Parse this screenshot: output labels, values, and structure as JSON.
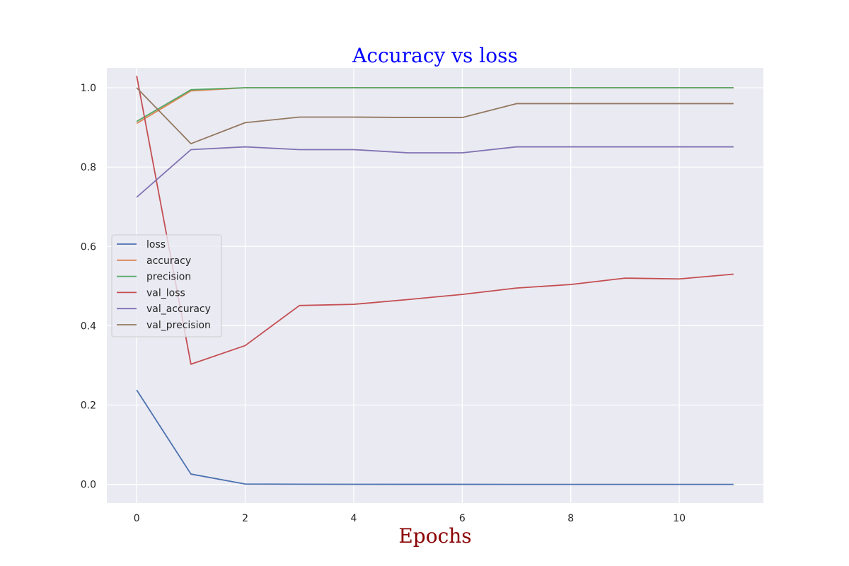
{
  "chart_data": {
    "type": "line",
    "title": "Accuracy vs loss",
    "title_color": "#0000ff",
    "xlabel": "Epochs",
    "xlabel_color": "#8b0000",
    "ylabel": "",
    "x": [
      0,
      1,
      2,
      3,
      4,
      5,
      6,
      7,
      8,
      9,
      10,
      11
    ],
    "xlim": [
      -0.55,
      11.55
    ],
    "ylim": [
      -0.047,
      1.05
    ],
    "xticks": [
      0,
      2,
      4,
      6,
      8,
      10
    ],
    "xtick_labels": [
      "0",
      "2",
      "4",
      "6",
      "8",
      "10"
    ],
    "yticks": [
      0.0,
      0.2,
      0.4,
      0.6,
      0.8,
      1.0
    ],
    "ytick_labels": [
      "0.0",
      "0.2",
      "0.4",
      "0.6",
      "0.8",
      "1.0"
    ],
    "grid": true,
    "background_color": "#eaeaf2",
    "legend_position": "center-left",
    "series": [
      {
        "name": "loss",
        "color": "#4c72b0",
        "values": [
          0.238,
          0.026,
          0.001,
          0.0005,
          0.0003,
          0.0002,
          0.0002,
          0.0001,
          0.0001,
          0.0001,
          0.0001,
          0.0001
        ]
      },
      {
        "name": "accuracy",
        "color": "#dd8452",
        "values": [
          0.91,
          0.992,
          1.0,
          1.0,
          1.0,
          1.0,
          1.0,
          1.0,
          1.0,
          1.0,
          1.0,
          1.0
        ]
      },
      {
        "name": "precision",
        "color": "#55a868",
        "values": [
          0.915,
          0.995,
          1.0,
          1.0,
          1.0,
          1.0,
          1.0,
          1.0,
          1.0,
          1.0,
          1.0,
          1.0
        ]
      },
      {
        "name": "val_loss",
        "color": "#c44e52",
        "values": [
          1.03,
          0.303,
          0.35,
          0.451,
          0.454,
          0.466,
          0.479,
          0.495,
          0.504,
          0.52,
          0.518,
          0.53
        ]
      },
      {
        "name": "val_accuracy",
        "color": "#8172b3",
        "values": [
          0.724,
          0.844,
          0.851,
          0.844,
          0.844,
          0.836,
          0.836,
          0.851,
          0.851,
          0.851,
          0.851,
          0.851
        ]
      },
      {
        "name": "val_precision",
        "color": "#937860",
        "values": [
          1.0,
          0.859,
          0.912,
          0.926,
          0.926,
          0.925,
          0.925,
          0.96,
          0.96,
          0.96,
          0.96,
          0.96
        ]
      }
    ]
  }
}
